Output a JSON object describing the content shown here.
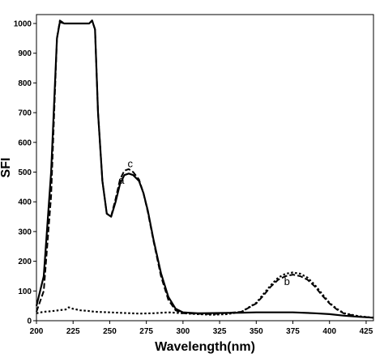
{
  "chart_data": {
    "type": "line",
    "title": "",
    "xlabel": "Wavelength(nm)",
    "ylabel": "SFI",
    "xlim": [
      200,
      430
    ],
    "ylim": [
      0,
      1030
    ],
    "xticks": [
      200,
      225,
      250,
      275,
      300,
      325,
      350,
      375,
      400,
      425
    ],
    "yticks": [
      0,
      100,
      200,
      300,
      400,
      500,
      600,
      700,
      800,
      900,
      1000
    ],
    "grid": false,
    "legend": "none",
    "series": [
      {
        "curve_label": "a",
        "style": "solid",
        "color": "#000000",
        "points": [
          [
            200,
            50
          ],
          [
            205,
            150
          ],
          [
            210,
            500
          ],
          [
            214,
            950
          ],
          [
            216,
            1005
          ],
          [
            219,
            1000
          ],
          [
            225,
            1000
          ],
          [
            230,
            1000
          ],
          [
            236,
            1000
          ],
          [
            238,
            1010
          ],
          [
            240,
            980
          ],
          [
            242,
            700
          ],
          [
            245,
            470
          ],
          [
            248,
            360
          ],
          [
            251,
            350
          ],
          [
            254,
            400
          ],
          [
            257,
            460
          ],
          [
            260,
            490
          ],
          [
            263,
            495
          ],
          [
            266,
            490
          ],
          [
            270,
            470
          ],
          [
            273,
            430
          ],
          [
            276,
            370
          ],
          [
            280,
            270
          ],
          [
            285,
            160
          ],
          [
            290,
            80
          ],
          [
            295,
            40
          ],
          [
            300,
            28
          ],
          [
            310,
            25
          ],
          [
            325,
            26
          ],
          [
            340,
            27
          ],
          [
            350,
            28
          ],
          [
            360,
            28
          ],
          [
            375,
            28
          ],
          [
            390,
            25
          ],
          [
            400,
            22
          ],
          [
            410,
            17
          ],
          [
            420,
            13
          ],
          [
            430,
            10
          ]
        ]
      },
      {
        "curve_label": "b",
        "style": "dotted",
        "color": "#000000",
        "points": [
          [
            200,
            25
          ],
          [
            205,
            30
          ],
          [
            210,
            32
          ],
          [
            215,
            35
          ],
          [
            220,
            38
          ],
          [
            222,
            45
          ],
          [
            225,
            40
          ],
          [
            230,
            35
          ],
          [
            235,
            33
          ],
          [
            240,
            30
          ],
          [
            250,
            28
          ],
          [
            260,
            26
          ],
          [
            270,
            24
          ],
          [
            280,
            25
          ],
          [
            290,
            28
          ],
          [
            300,
            25
          ],
          [
            310,
            22
          ],
          [
            320,
            20
          ],
          [
            330,
            22
          ],
          [
            340,
            30
          ],
          [
            350,
            60
          ],
          [
            355,
            90
          ],
          [
            360,
            120
          ],
          [
            365,
            145
          ],
          [
            370,
            158
          ],
          [
            375,
            162
          ],
          [
            380,
            158
          ],
          [
            385,
            145
          ],
          [
            390,
            120
          ],
          [
            395,
            90
          ],
          [
            400,
            60
          ],
          [
            405,
            40
          ],
          [
            410,
            25
          ],
          [
            420,
            15
          ],
          [
            430,
            10
          ]
        ]
      },
      {
        "curve_label": "c",
        "style": "dashed",
        "color": "#000000",
        "points": [
          [
            200,
            30
          ],
          [
            205,
            100
          ],
          [
            210,
            420
          ],
          [
            214,
            950
          ],
          [
            216,
            1010
          ],
          [
            219,
            1000
          ],
          [
            225,
            1000
          ],
          [
            230,
            1000
          ],
          [
            236,
            1000
          ],
          [
            238,
            1010
          ],
          [
            240,
            980
          ],
          [
            242,
            700
          ],
          [
            245,
            470
          ],
          [
            248,
            360
          ],
          [
            251,
            352
          ],
          [
            254,
            410
          ],
          [
            257,
            475
          ],
          [
            260,
            505
          ],
          [
            263,
            510
          ],
          [
            266,
            500
          ],
          [
            270,
            475
          ],
          [
            273,
            430
          ],
          [
            276,
            365
          ],
          [
            280,
            265
          ],
          [
            285,
            150
          ],
          [
            290,
            70
          ],
          [
            295,
            35
          ],
          [
            300,
            25
          ],
          [
            320,
            22
          ],
          [
            340,
            30
          ],
          [
            350,
            58
          ],
          [
            355,
            85
          ],
          [
            360,
            115
          ],
          [
            365,
            138
          ],
          [
            370,
            150
          ],
          [
            375,
            155
          ],
          [
            380,
            150
          ],
          [
            385,
            138
          ],
          [
            390,
            115
          ],
          [
            395,
            85
          ],
          [
            400,
            58
          ],
          [
            405,
            38
          ],
          [
            410,
            24
          ],
          [
            420,
            14
          ],
          [
            430,
            10
          ]
        ]
      }
    ]
  }
}
